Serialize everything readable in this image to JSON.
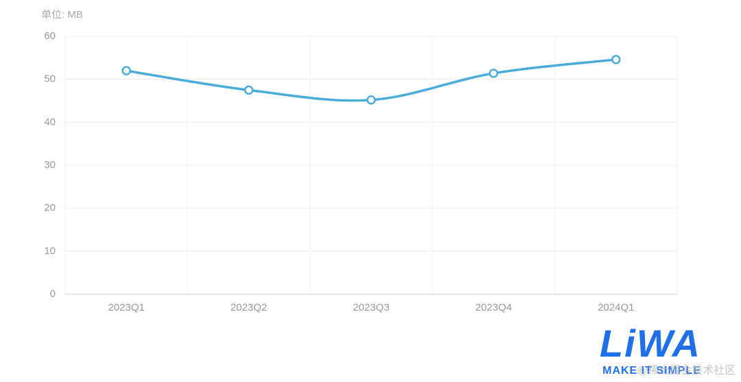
{
  "chart_data": {
    "type": "line",
    "y_axis_label": "单位: MB",
    "categories": [
      "2023Q1",
      "2023Q2",
      "2023Q3",
      "2023Q4",
      "2024Q1"
    ],
    "values": [
      52,
      47.5,
      45.2,
      51.4,
      54.6
    ],
    "color": "#4aacd9",
    "smooth": true,
    "ylim": [
      0,
      60
    ],
    "yticks": [
      0,
      10,
      20,
      30,
      40,
      50,
      60
    ],
    "grid": true
  },
  "watermark": {
    "logo": "LiWA",
    "slogan": "MAKE IT SIMPLE",
    "credit": "@稀土掘金技术社区"
  }
}
